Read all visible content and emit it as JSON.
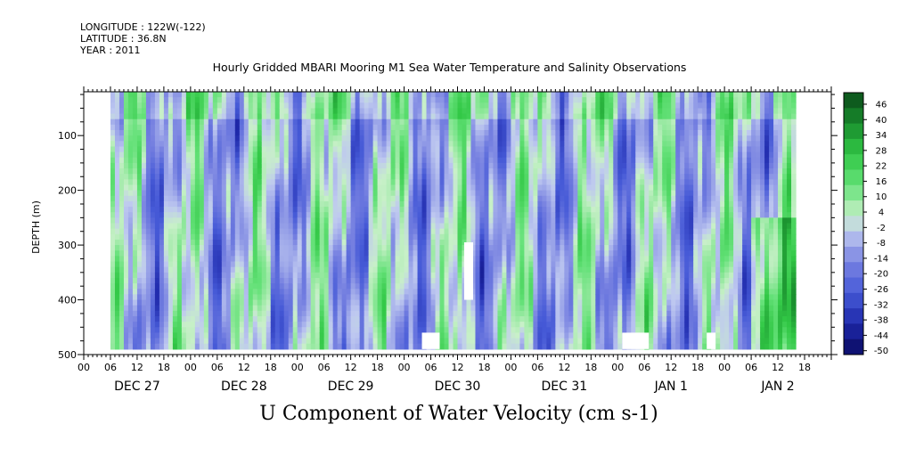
{
  "header": {
    "longitude": "LONGITUDE : 122W(-122)",
    "latitude": "LATITUDE : 36.8N",
    "year": "YEAR : 2011"
  },
  "chart_data": {
    "type": "heatmap",
    "title": "Hourly Gridded MBARI Mooring M1 Sea Water Temperature and Salinity Observations",
    "xlabel": "U Component of Water Velocity (cm s-1)",
    "ylabel": "DEPTH (m)",
    "x_range_hours": [
      0,
      168
    ],
    "data_x_range_hours": [
      6,
      160
    ],
    "ylim": [
      500,
      20
    ],
    "data_depth_range": [
      20,
      490
    ],
    "y_ticks": [
      100,
      200,
      300,
      400,
      500
    ],
    "x_hour_labels": [
      "00",
      "06",
      "12",
      "18",
      "00",
      "06",
      "12",
      "18",
      "00",
      "06",
      "12",
      "18",
      "00",
      "06",
      "12",
      "18",
      "00",
      "06",
      "12",
      "18",
      "00",
      "06",
      "12",
      "18",
      "00",
      "06",
      "12",
      "18"
    ],
    "day_labels": [
      "DEC 27",
      "DEC 28",
      "DEC 29",
      "DEC 30",
      "DEC 31",
      "JAN  1",
      "JAN  2"
    ],
    "colorbar_levels": [
      "46",
      "40",
      "34",
      "28",
      "22",
      "16",
      "10",
      "4",
      "-2",
      "-8",
      "-14",
      "-20",
      "-26",
      "-32",
      "-38",
      "-44",
      "-50"
    ],
    "colorbar_min": -50,
    "colorbar_max": 52,
    "palette": {
      "high": "#0a4a14",
      "mid_high": "#34d24f",
      "zero": "#cdd8ef",
      "mid_low": "#5a6ad8",
      "low": "#0a0a60"
    }
  }
}
